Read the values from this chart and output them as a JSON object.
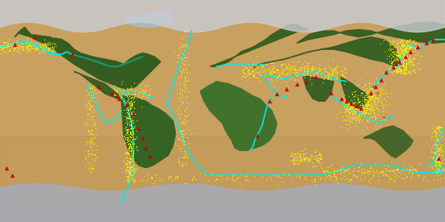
{
  "figsize": [
    5.5,
    2.75
  ],
  "dpi": 100,
  "plate_boundary_color": "#00e8e8",
  "plate_boundary_lw": 1.2,
  "earthquake_color": "#ffff00",
  "earthquake_size": 0.8,
  "volcano_color": "#cc0000",
  "volcano_size": 15.0,
  "xlim": [
    -180,
    180
  ],
  "ylim": [
    -90,
    90
  ]
}
